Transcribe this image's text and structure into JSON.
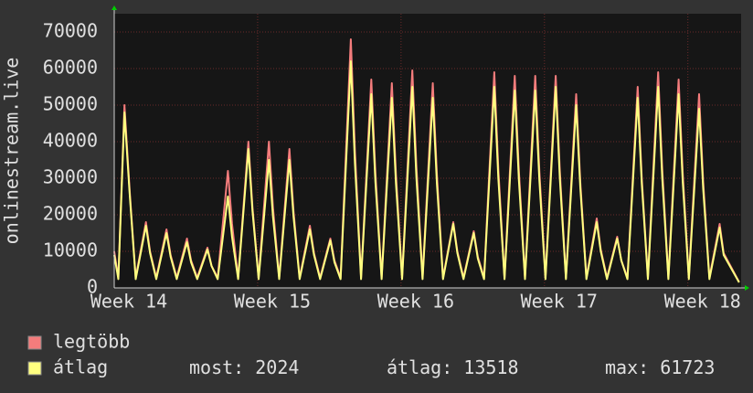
{
  "chart_data": {
    "type": "line",
    "y_label": "onlinestream.live",
    "x": [
      0,
      0.2,
      0.5,
      0.75,
      1.05,
      1.55,
      1.75,
      2.05,
      2.55,
      2.75,
      3.05,
      3.55,
      3.75,
      4.05,
      4.55,
      4.75,
      5.05,
      5.55,
      5.75,
      6.05,
      6.55,
      6.75,
      7.05,
      7.55,
      7.75,
      8.05,
      8.55,
      8.75,
      9.05,
      9.55,
      9.75,
      10.05,
      10.55,
      10.75,
      11.05,
      11.55,
      11.75,
      12.05,
      12.55,
      12.75,
      13.05,
      13.55,
      13.75,
      14.05,
      14.55,
      14.75,
      15.05,
      15.55,
      15.75,
      16.05,
      16.55,
      16.75,
      17.05,
      17.55,
      17.75,
      18.05,
      18.55,
      18.75,
      19.05,
      19.55,
      19.75,
      20.05,
      20.55,
      20.75,
      21.05,
      21.55,
      21.75,
      22.05,
      22.55,
      22.75,
      23.05,
      23.55,
      23.75,
      24.05,
      24.55,
      24.75,
      25.05,
      25.55,
      25.75,
      26.05,
      26.55,
      26.75,
      27.05,
      27.55,
      27.75,
      28.05,
      28.55,
      28.75,
      29.05,
      29.55,
      29.75,
      30.5
    ],
    "series": [
      {
        "name": "legtöbb",
        "color": "#f47c7c",
        "values": [
          10000,
          2800,
          50000,
          27000,
          2800,
          18000,
          10000,
          2800,
          16000,
          9000,
          2800,
          13500,
          7500,
          2800,
          11000,
          6000,
          2800,
          32000,
          17500,
          2800,
          40000,
          22000,
          2800,
          40000,
          22000,
          2800,
          38000,
          21000,
          2800,
          17000,
          9500,
          2800,
          13500,
          7500,
          2800,
          68000,
          37500,
          2800,
          57000,
          31500,
          2800,
          56000,
          31000,
          2800,
          59500,
          33000,
          2800,
          56000,
          31000,
          2800,
          18000,
          10000,
          2800,
          15500,
          8500,
          2800,
          59000,
          32500,
          2800,
          58000,
          32000,
          2800,
          58000,
          32000,
          2800,
          58000,
          32000,
          2800,
          53000,
          29000,
          2800,
          19000,
          10500,
          2800,
          14000,
          7500,
          2800,
          55000,
          30000,
          2800,
          59000,
          32500,
          2800,
          57000,
          31500,
          2800,
          53000,
          29000,
          2800,
          17500,
          9500,
          1600
        ]
      },
      {
        "name": "átlag",
        "color": "#ffff80",
        "values": [
          9000,
          2400,
          48000,
          26000,
          2400,
          17000,
          9500,
          2400,
          15000,
          8500,
          2400,
          12500,
          7000,
          2400,
          10500,
          6000,
          2400,
          25000,
          14000,
          2400,
          38000,
          21000,
          2400,
          35000,
          19500,
          2400,
          35000,
          19500,
          2400,
          16000,
          9000,
          2400,
          13000,
          7000,
          2400,
          62000,
          34000,
          2400,
          53000,
          29000,
          2400,
          52000,
          28500,
          2400,
          55000,
          30000,
          2400,
          52000,
          28500,
          2400,
          17500,
          9500,
          2400,
          15000,
          8000,
          2400,
          55000,
          30000,
          2400,
          54000,
          29500,
          2400,
          54000,
          29500,
          2400,
          55000,
          30000,
          2400,
          50000,
          27500,
          2400,
          18000,
          10000,
          2400,
          13500,
          7500,
          2400,
          52000,
          28500,
          2400,
          55000,
          30000,
          2400,
          53000,
          29000,
          2400,
          49000,
          27000,
          2400,
          16500,
          9000,
          1500
        ]
      }
    ],
    "xlim": [
      0,
      30.6
    ],
    "xticks": [
      {
        "value": 0,
        "label": "Week 14"
      },
      {
        "value": 7,
        "label": "Week 15"
      },
      {
        "value": 14,
        "label": "Week 16"
      },
      {
        "value": 21,
        "label": "Week 17"
      },
      {
        "value": 28,
        "label": "Week 18"
      }
    ],
    "ylim": [
      0,
      75000
    ],
    "yticks": [
      0,
      10000,
      20000,
      30000,
      40000,
      50000,
      60000,
      70000
    ],
    "grid": true,
    "stats": [
      {
        "label": "most:",
        "value": 2024
      },
      {
        "label": "átlag:",
        "value": 13518
      },
      {
        "label": "max:",
        "value": 61723
      }
    ]
  }
}
